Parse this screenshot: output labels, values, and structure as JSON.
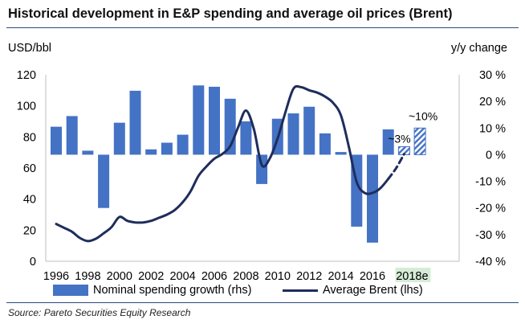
{
  "header": {
    "title": "Historical development in E&P spending and average oil prices (Brent)"
  },
  "axes": {
    "left_unit": "USD/bbl",
    "right_unit": "y/y change"
  },
  "chart_data": {
    "type": "bar+line",
    "title": "Historical development in E&P spending and average oil prices (Brent)",
    "x_ticks": [
      "1996",
      "1998",
      "2000",
      "2002",
      "2004",
      "2006",
      "2008",
      "2010",
      "2012",
      "2014",
      "2016",
      "2018e"
    ],
    "left_axis": {
      "label": "USD/bbl",
      "ticks": [
        "0",
        "20",
        "40",
        "60",
        "80",
        "100",
        "120"
      ],
      "ylim": [
        0,
        120
      ]
    },
    "right_axis": {
      "label": "y/y change",
      "ticks": [
        "-40 %",
        "-30 %",
        "-20 %",
        "-10 %",
        "0 %",
        "10 %",
        "20 %",
        "30 %"
      ],
      "ylim": [
        -40,
        30
      ]
    },
    "bars": {
      "name": "Nominal spending growth (rhs)",
      "years": [
        1996,
        1997,
        1998,
        1999,
        2000,
        2001,
        2002,
        2003,
        2004,
        2005,
        2006,
        2007,
        2008,
        2009,
        2010,
        2011,
        2012,
        2013,
        2014,
        2015,
        2016,
        2017,
        2018,
        2019
      ],
      "values": [
        10.5,
        14.5,
        1.5,
        -20,
        12,
        24,
        2,
        4.5,
        7.5,
        26,
        25.5,
        21,
        12.5,
        -11,
        13.5,
        15.5,
        18,
        8,
        1,
        -27,
        -33,
        9.5,
        3,
        10
      ],
      "estimate_flags": [
        false,
        false,
        false,
        false,
        false,
        false,
        false,
        false,
        false,
        false,
        false,
        false,
        false,
        false,
        false,
        false,
        false,
        false,
        false,
        false,
        false,
        false,
        true,
        true
      ]
    },
    "line": {
      "name": "Average Brent (lhs)",
      "x": [
        1996,
        1996.5,
        1997,
        1997.5,
        1998,
        1998.5,
        1999,
        1999.5,
        2000,
        2000.5,
        2001,
        2001.5,
        2002,
        2002.5,
        2003,
        2003.5,
        2004,
        2004.5,
        2005,
        2005.5,
        2006,
        2006.5,
        2007,
        2007.5,
        2008,
        2008.5,
        2009,
        2009.5,
        2010,
        2010.5,
        2011,
        2011.5,
        2012,
        2012.5,
        2013,
        2013.5,
        2014,
        2014.5,
        2015,
        2015.5,
        2016,
        2016.5,
        2017
      ],
      "y": [
        24,
        21.5,
        19,
        15,
        13,
        14.5,
        18,
        22,
        28.5,
        26,
        25,
        25,
        26,
        28,
        30,
        33,
        38,
        45,
        55,
        61,
        66,
        69,
        74,
        86,
        97,
        85,
        62,
        66,
        79,
        96,
        111,
        112,
        110,
        108.5,
        106,
        102,
        94,
        74,
        51,
        44,
        44,
        47,
        53
      ],
      "projection_x": [
        2017,
        2017.5,
        2018
      ],
      "projection_y": [
        53,
        60,
        69
      ]
    },
    "annotations": [
      "~3%",
      "~10%"
    ],
    "legend": [
      "Nominal spending growth (rhs)",
      "Average Brent (lhs)"
    ],
    "legend_position": "bottom"
  },
  "footer": {
    "source": "Source: Pareto Securities Equity Research"
  },
  "colors": {
    "bar": "#4472c4",
    "line": "#1f2d5c",
    "title_rule": "#2f4a7e",
    "highlight": "#d5ecd6"
  }
}
